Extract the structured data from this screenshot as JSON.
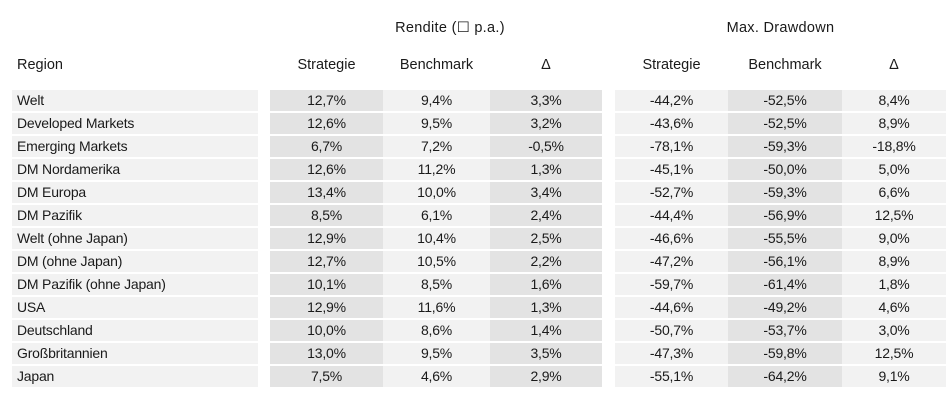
{
  "groups": {
    "rendite": "Rendite (☐ p.a.)",
    "drawdown": "Max. Drawdown"
  },
  "columns": {
    "region": "Region",
    "strategie": "Strategie",
    "benchmark": "Benchmark",
    "delta": "Δ",
    "strategie2": "Strategie",
    "benchmark2": "Benchmark",
    "delta2": "Δ"
  },
  "rows": [
    {
      "region": "Welt",
      "r_strat": "12,7%",
      "r_bench": "9,4%",
      "r_delta": "3,3%",
      "d_strat": "-44,2%",
      "d_bench": "-52,5%",
      "d_delta": "8,4%"
    },
    {
      "region": "Developed Markets",
      "r_strat": "12,6%",
      "r_bench": "9,5%",
      "r_delta": "3,2%",
      "d_strat": "-43,6%",
      "d_bench": "-52,5%",
      "d_delta": "8,9%"
    },
    {
      "region": "Emerging Markets",
      "r_strat": "6,7%",
      "r_bench": "7,2%",
      "r_delta": "-0,5%",
      "d_strat": "-78,1%",
      "d_bench": "-59,3%",
      "d_delta": "-18,8%"
    },
    {
      "region": "DM Nordamerika",
      "r_strat": "12,6%",
      "r_bench": "11,2%",
      "r_delta": "1,3%",
      "d_strat": "-45,1%",
      "d_bench": "-50,0%",
      "d_delta": "5,0%"
    },
    {
      "region": "DM Europa",
      "r_strat": "13,4%",
      "r_bench": "10,0%",
      "r_delta": "3,4%",
      "d_strat": "-52,7%",
      "d_bench": "-59,3%",
      "d_delta": "6,6%"
    },
    {
      "region": "DM Pazifik",
      "r_strat": "8,5%",
      "r_bench": "6,1%",
      "r_delta": "2,4%",
      "d_strat": "-44,4%",
      "d_bench": "-56,9%",
      "d_delta": "12,5%"
    },
    {
      "region": "Welt (ohne Japan)",
      "r_strat": "12,9%",
      "r_bench": "10,4%",
      "r_delta": "2,5%",
      "d_strat": "-46,6%",
      "d_bench": "-55,5%",
      "d_delta": "9,0%"
    },
    {
      "region": "DM (ohne Japan)",
      "r_strat": "12,7%",
      "r_bench": "10,5%",
      "r_delta": "2,2%",
      "d_strat": "-47,2%",
      "d_bench": "-56,1%",
      "d_delta": "8,9%"
    },
    {
      "region": "DM Pazifik (ohne Japan)",
      "r_strat": "10,1%",
      "r_bench": "8,5%",
      "r_delta": "1,6%",
      "d_strat": "-59,7%",
      "d_bench": "-61,4%",
      "d_delta": "1,8%"
    },
    {
      "region": "USA",
      "r_strat": "12,9%",
      "r_bench": "11,6%",
      "r_delta": "1,3%",
      "d_strat": "-44,6%",
      "d_bench": "-49,2%",
      "d_delta": "4,6%"
    },
    {
      "region": "Deutschland",
      "r_strat": "10,0%",
      "r_bench": "8,6%",
      "r_delta": "1,4%",
      "d_strat": "-50,7%",
      "d_bench": "-53,7%",
      "d_delta": "3,0%"
    },
    {
      "region": "Großbritannien",
      "r_strat": "13,0%",
      "r_bench": "9,5%",
      "r_delta": "3,5%",
      "d_strat": "-47,3%",
      "d_bench": "-59,8%",
      "d_delta": "12,5%"
    },
    {
      "region": "Japan",
      "r_strat": "7,5%",
      "r_bench": "4,6%",
      "r_delta": "2,9%",
      "d_strat": "-55,1%",
      "d_bench": "-64,2%",
      "d_delta": "9,1%"
    }
  ]
}
